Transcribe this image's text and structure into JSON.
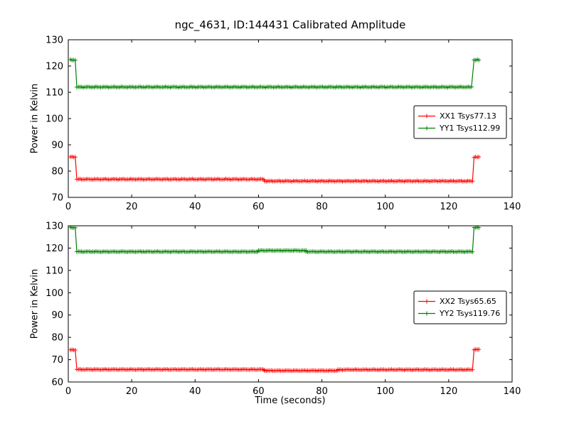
{
  "figure": {
    "title": "ngc_4631, ID:144431 Calibrated Amplitude",
    "xlabel": "Time (seconds)",
    "background": "#ffffff",
    "text_color": "#000000"
  },
  "chart_data": [
    {
      "type": "line",
      "title": "ngc_4631, ID:144431 Calibrated Amplitude",
      "xlabel": "",
      "ylabel": "Power in Kelvin",
      "xlim": [
        0,
        140
      ],
      "ylim": [
        70,
        130
      ],
      "xticks": [
        0,
        20,
        40,
        60,
        80,
        100,
        120,
        140
      ],
      "yticks": [
        70,
        80,
        90,
        100,
        110,
        120,
        130
      ],
      "grid": false,
      "legend": {
        "position": "right-center",
        "entries": [
          "XX1 Tsys77.13",
          "YY1 Tsys112.99"
        ]
      },
      "series": [
        {
          "name": "XX1 Tsys77.13",
          "color": "#ff0000",
          "marker": "plus",
          "sample_step": 0.5,
          "segments": [
            {
              "x0": 0.7,
              "x1": 2.2,
              "y": 85.4
            },
            {
              "x0": 2.7,
              "x1": 62.0,
              "y": 76.9
            },
            {
              "x0": 62.0,
              "x1": 127.5,
              "y": 76.2
            },
            {
              "x0": 128.0,
              "x1": 129.6,
              "y": 85.3
            }
          ]
        },
        {
          "name": "YY1 Tsys112.99",
          "color": "#008000",
          "marker": "plus",
          "sample_step": 0.5,
          "segments": [
            {
              "x0": 0.7,
              "x1": 2.2,
              "y": 122.3
            },
            {
              "x0": 2.7,
              "x1": 127.5,
              "y": 112.0
            },
            {
              "x0": 128.0,
              "x1": 129.6,
              "y": 122.3
            }
          ]
        }
      ]
    },
    {
      "type": "line",
      "title": "",
      "xlabel": "Time (seconds)",
      "ylabel": "Power in Kelvin",
      "xlim": [
        0,
        140
      ],
      "ylim": [
        60,
        130
      ],
      "xticks": [
        0,
        20,
        40,
        60,
        80,
        100,
        120,
        140
      ],
      "yticks": [
        60,
        70,
        80,
        90,
        100,
        110,
        120,
        130
      ],
      "grid": false,
      "legend": {
        "position": "right-center",
        "entries": [
          "XX2 Tsys65.65",
          "YY2 Tsys119.76"
        ]
      },
      "series": [
        {
          "name": "XX2 Tsys65.65",
          "color": "#ff0000",
          "marker": "plus",
          "sample_step": 0.5,
          "segments": [
            {
              "x0": 0.7,
              "x1": 2.2,
              "y": 74.4
            },
            {
              "x0": 2.7,
              "x1": 62.0,
              "y": 65.6
            },
            {
              "x0": 62.0,
              "x1": 85.0,
              "y": 65.1
            },
            {
              "x0": 85.0,
              "x1": 127.5,
              "y": 65.5
            },
            {
              "x0": 128.0,
              "x1": 129.6,
              "y": 74.5
            }
          ]
        },
        {
          "name": "YY2 Tsys119.76",
          "color": "#008000",
          "marker": "plus",
          "sample_step": 0.5,
          "segments": [
            {
              "x0": 0.7,
              "x1": 2.2,
              "y": 129.2
            },
            {
              "x0": 2.7,
              "x1": 60.0,
              "y": 118.4
            },
            {
              "x0": 60.0,
              "x1": 75.0,
              "y": 118.9
            },
            {
              "x0": 75.0,
              "x1": 127.5,
              "y": 118.4
            },
            {
              "x0": 128.0,
              "x1": 129.6,
              "y": 129.2
            }
          ]
        }
      ]
    }
  ]
}
